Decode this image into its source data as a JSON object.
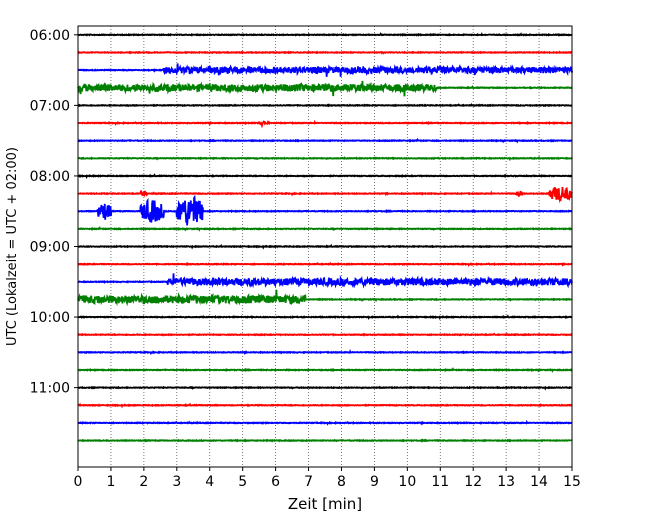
{
  "chart_data": {
    "type": "line",
    "title": "",
    "xlabel": "Zeit  [min]",
    "ylabel": "UTC (Lokalzeit = UTC + 02:00)",
    "xlim": [
      0,
      15
    ],
    "x_ticks": [
      0,
      1,
      2,
      3,
      4,
      5,
      6,
      7,
      8,
      9,
      10,
      11,
      12,
      13,
      14,
      15
    ],
    "ylim_minutes": [
      "05:52:30",
      "12:07:30"
    ],
    "y_ticks": [
      "06:00",
      "07:00",
      "08:00",
      "09:00",
      "10:00",
      "11:00"
    ],
    "grid": {
      "x": "dotted",
      "y": false
    },
    "trace_interval_min": 15,
    "trace_colors": [
      "#000000",
      "#ff0000",
      "#0000ff",
      "#008000"
    ],
    "traces": [
      {
        "start": "06:00",
        "color": "#000000",
        "events": []
      },
      {
        "start": "06:15",
        "color": "#ff0000",
        "events": []
      },
      {
        "start": "06:30",
        "color": "#0000ff",
        "events": [
          {
            "from": 2.6,
            "to": 15.0,
            "amp": 0.35
          }
        ]
      },
      {
        "start": "06:45",
        "color": "#008000",
        "events": [
          {
            "from": 0.0,
            "to": 10.9,
            "amp": 0.4
          }
        ]
      },
      {
        "start": "07:00",
        "color": "#000000",
        "events": []
      },
      {
        "start": "07:15",
        "color": "#ff0000",
        "events": [
          {
            "from": 5.5,
            "to": 5.8,
            "amp": 0.2
          }
        ]
      },
      {
        "start": "07:30",
        "color": "#0000ff",
        "events": []
      },
      {
        "start": "07:45",
        "color": "#008000",
        "events": []
      },
      {
        "start": "08:00",
        "color": "#000000",
        "events": []
      },
      {
        "start": "08:15",
        "color": "#ff0000",
        "events": [
          {
            "from": 1.9,
            "to": 2.1,
            "amp": 0.25
          },
          {
            "from": 13.3,
            "to": 13.5,
            "amp": 0.35
          },
          {
            "from": 14.3,
            "to": 15.0,
            "amp": 0.85
          }
        ]
      },
      {
        "start": "08:30",
        "color": "#0000ff",
        "events": [
          {
            "from": 0.6,
            "to": 1.0,
            "amp": 1.0
          },
          {
            "from": 1.9,
            "to": 2.6,
            "amp": 1.3
          },
          {
            "from": 3.0,
            "to": 3.8,
            "amp": 1.7
          }
        ]
      },
      {
        "start": "08:45",
        "color": "#008000",
        "events": []
      },
      {
        "start": "09:00",
        "color": "#000000",
        "events": []
      },
      {
        "start": "09:15",
        "color": "#ff0000",
        "events": []
      },
      {
        "start": "09:30",
        "color": "#0000ff",
        "events": [
          {
            "from": 2.7,
            "to": 15.0,
            "amp": 0.4
          }
        ]
      },
      {
        "start": "09:45",
        "color": "#008000",
        "events": [
          {
            "from": 0.0,
            "to": 6.9,
            "amp": 0.45
          }
        ]
      },
      {
        "start": "10:00",
        "color": "#000000",
        "events": []
      },
      {
        "start": "10:15",
        "color": "#ff0000",
        "events": []
      },
      {
        "start": "10:30",
        "color": "#0000ff",
        "events": []
      },
      {
        "start": "10:45",
        "color": "#008000",
        "events": []
      },
      {
        "start": "11:00",
        "color": "#000000",
        "events": []
      },
      {
        "start": "11:15",
        "color": "#ff0000",
        "events": []
      },
      {
        "start": "11:30",
        "color": "#0000ff",
        "events": []
      },
      {
        "start": "11:45",
        "color": "#008000",
        "events": []
      }
    ]
  }
}
